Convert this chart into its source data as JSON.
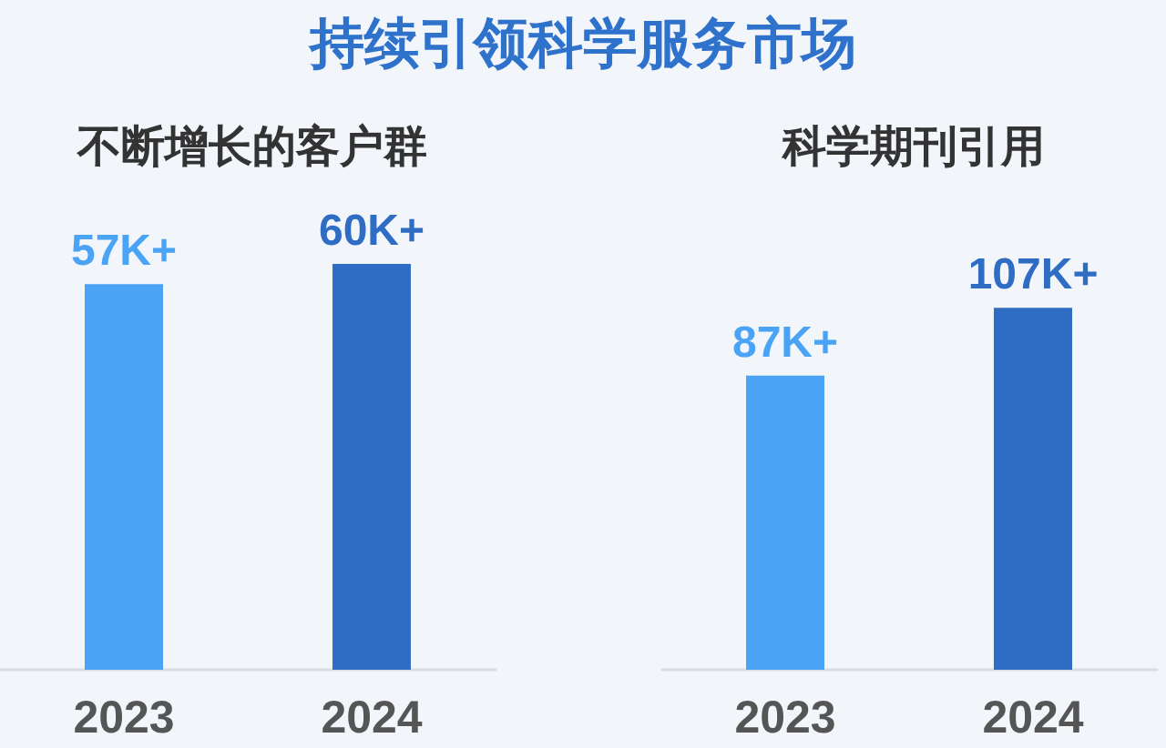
{
  "chart_data": [
    {
      "type": "bar",
      "title": "持续引领科学服务市场",
      "subtitle": "不断增长的客户群",
      "categories": [
        "2023",
        "2024"
      ],
      "values": [
        57,
        60
      ],
      "value_labels": [
        "57K+",
        "60K+"
      ],
      "colors": [
        "#4aa3f5",
        "#2f6cc4"
      ]
    },
    {
      "type": "bar",
      "subtitle": "科学期刊引用",
      "categories": [
        "2023",
        "2024"
      ],
      "values": [
        87,
        107
      ],
      "value_labels": [
        "87K+",
        "107K+"
      ],
      "colors": [
        "#4aa3f5",
        "#2f6cc4"
      ]
    }
  ]
}
